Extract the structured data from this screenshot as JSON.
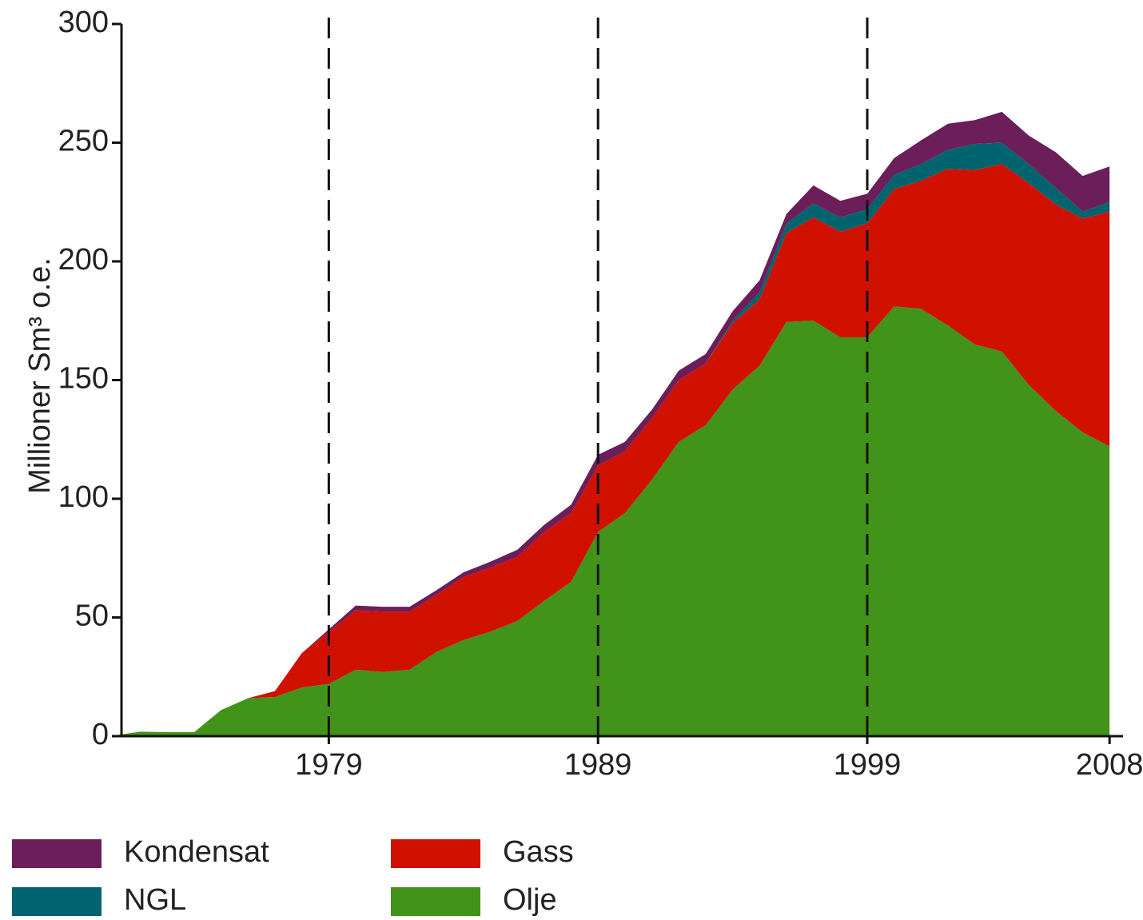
{
  "chart_data": {
    "type": "stacked_area",
    "ylabel": "Millioner Sm³ o.e.",
    "x": [
      1971,
      1972,
      1973,
      1974,
      1975,
      1976,
      1977,
      1978,
      1979,
      1980,
      1981,
      1982,
      1983,
      1984,
      1985,
      1986,
      1987,
      1988,
      1989,
      1990,
      1991,
      1992,
      1993,
      1994,
      1995,
      1996,
      1997,
      1998,
      1999,
      2000,
      2001,
      2002,
      2003,
      2004,
      2005,
      2006,
      2007,
      2008
    ],
    "series": [
      {
        "name": "Olje",
        "color": "#42931a",
        "values": [
          0.3,
          1.9,
          1.7,
          1.7,
          11,
          16,
          16.5,
          20.5,
          22,
          28,
          27,
          28,
          35.5,
          40.5,
          44,
          48.5,
          57,
          65,
          86,
          94,
          108,
          124,
          131,
          146,
          156,
          174.5,
          175,
          168,
          168,
          181,
          180,
          173,
          165,
          162,
          148,
          137,
          128,
          122
        ]
      },
      {
        "name": "Gass",
        "color": "#d01100",
        "values": [
          0,
          0,
          0,
          0,
          0,
          0,
          2.5,
          14.5,
          22,
          25,
          25.5,
          24.5,
          24,
          26.5,
          27,
          27,
          29,
          29,
          28,
          26,
          26,
          26,
          26,
          28,
          28,
          37.5,
          43.5,
          44.5,
          48,
          49.5,
          54,
          66,
          73.5,
          79,
          85,
          87,
          90,
          99
        ]
      },
      {
        "name": "NGL",
        "color": "#00646e",
        "values": [
          0,
          0,
          0,
          0,
          0,
          0,
          0,
          0,
          0,
          0,
          0,
          0,
          0,
          0,
          0,
          0,
          0,
          0,
          0,
          0,
          0,
          0,
          0,
          1,
          3,
          4,
          6,
          6,
          6,
          6,
          7,
          8,
          11,
          9,
          8,
          7,
          3,
          4
        ]
      },
      {
        "name": "Kondensat",
        "color": "#6b1e5a",
        "values": [
          0,
          0,
          0,
          0,
          0,
          0,
          0,
          0,
          1,
          2,
          2,
          2,
          2,
          2,
          2.5,
          3,
          3,
          3.5,
          4.5,
          4,
          3.5,
          4,
          4,
          4,
          5,
          4,
          7.5,
          7,
          6.5,
          7,
          10,
          11,
          10,
          13,
          12,
          15,
          15,
          15
        ]
      }
    ],
    "xlim": [
      1971.3,
      2008.5
    ],
    "xticks": [
      1979,
      1989,
      1999,
      2008
    ],
    "ylim": [
      0,
      300
    ],
    "yticks": [
      0,
      50,
      100,
      150,
      200,
      250,
      300
    ],
    "dashed_vlines": true
  }
}
